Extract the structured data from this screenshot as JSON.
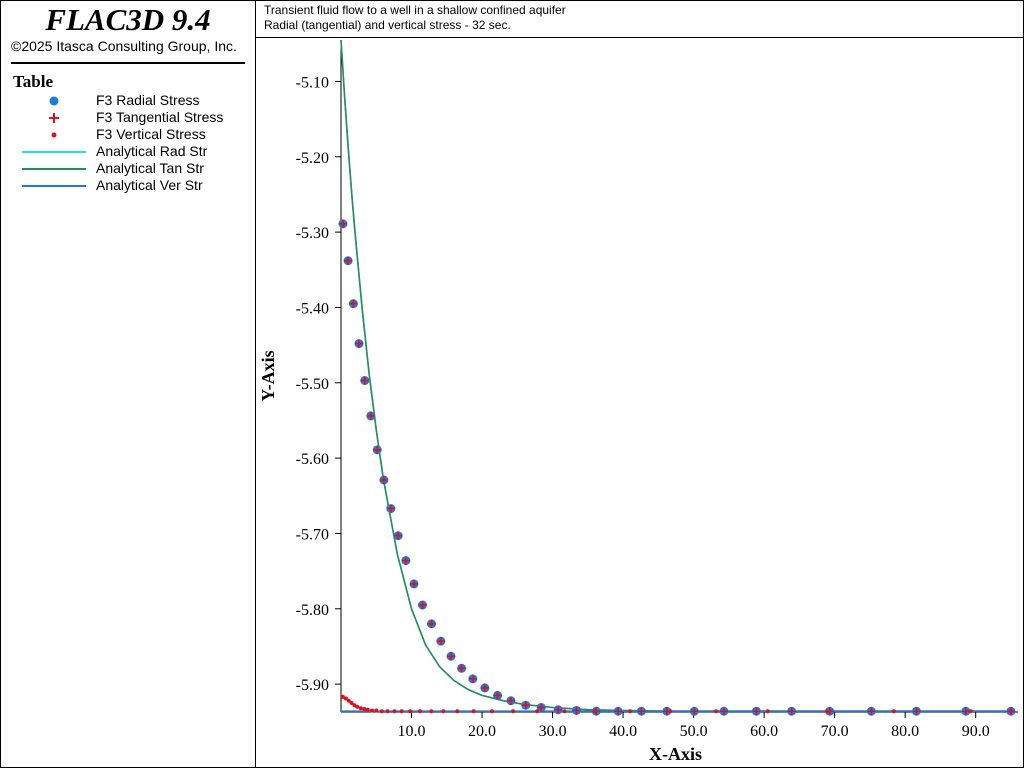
{
  "header": {
    "app_title": "FLAC3D 9.4",
    "copyright": "©2025 Itasca Consulting Group, Inc."
  },
  "legend": {
    "title": "Table",
    "items": [
      {
        "label": "F3 Radial Stress",
        "symbol": "circle",
        "color": "#1a7de0"
      },
      {
        "label": "F3 Tangential Stress",
        "symbol": "plus",
        "color": "#e0101a"
      },
      {
        "label": "F3 Vertical Stress",
        "symbol": "small-circle",
        "color": "#e0101a"
      },
      {
        "label": "Analytical Rad Str",
        "symbol": "line",
        "color": "#22e0e8"
      },
      {
        "label": "Analytical Tan Str",
        "symbol": "line",
        "color": "#2e8a57"
      },
      {
        "label": "Analytical Ver Str",
        "symbol": "line",
        "color": "#1f78e0"
      }
    ]
  },
  "plot_header": {
    "line1": "Transient fluid flow to a well in a shallow confined aquifer",
    "line2": "Radial (tangential) and vertical stress - 32 sec."
  },
  "chart_data": {
    "type": "scatter",
    "xlabel": "X-Axis",
    "ylabel": "Y-Axis",
    "xlim": [
      0.0,
      96.0
    ],
    "ylim": [
      -5.937,
      -5.045
    ],
    "grid": false,
    "x_ticks": [
      "10.0",
      "20.0",
      "30.0",
      "40.0",
      "50.0",
      "60.0",
      "70.0",
      "80.0",
      "90.0"
    ],
    "y_ticks": [
      "-5.10",
      "-5.20",
      "-5.30",
      "-5.40",
      "-5.50",
      "-5.60",
      "-5.70",
      "-5.80",
      "-5.90"
    ],
    "series": [
      {
        "name": "F3 Radial Stress",
        "marker": "circle",
        "color": "#1a7de0",
        "x": [
          0.28,
          1.0,
          1.76,
          2.55,
          3.37,
          4.23,
          5.14,
          6.08,
          7.07,
          8.11,
          9.2,
          10.35,
          11.56,
          12.83,
          14.16,
          15.6,
          17.1,
          18.7,
          20.4,
          22.2,
          24.1,
          26.2,
          28.4,
          30.8,
          33.4,
          36.2,
          39.3,
          42.6,
          46.2,
          50.1,
          54.3,
          58.9,
          63.9,
          69.3,
          75.2,
          81.6,
          88.6,
          95.0
        ],
        "y": [
          -5.289,
          -5.338,
          -5.395,
          -5.448,
          -5.497,
          -5.544,
          -5.589,
          -5.629,
          -5.667,
          -5.703,
          -5.736,
          -5.767,
          -5.795,
          -5.82,
          -5.843,
          -5.863,
          -5.879,
          -5.893,
          -5.905,
          -5.915,
          -5.922,
          -5.928,
          -5.931,
          -5.934,
          -5.935,
          -5.936,
          -5.936,
          -5.936,
          -5.936,
          -5.936,
          -5.936,
          -5.936,
          -5.936,
          -5.936,
          -5.936,
          -5.936,
          -5.936,
          -5.936
        ]
      },
      {
        "name": "F3 Tangential Stress",
        "marker": "plus",
        "color": "#e0101a",
        "x": [
          0.28,
          1.0,
          1.76,
          2.55,
          3.37,
          4.23,
          5.14,
          6.08,
          7.07,
          8.11,
          9.2,
          10.35,
          11.56,
          12.83,
          14.16,
          15.6,
          17.1,
          18.7,
          20.4,
          22.2,
          24.1,
          26.2,
          28.4,
          30.8,
          33.4,
          36.2,
          39.3,
          42.6,
          46.2,
          50.1,
          54.3,
          58.9,
          63.9,
          69.3,
          75.2,
          81.6,
          88.6,
          95.0
        ],
        "y": [
          -5.289,
          -5.338,
          -5.395,
          -5.448,
          -5.497,
          -5.544,
          -5.589,
          -5.629,
          -5.667,
          -5.703,
          -5.736,
          -5.767,
          -5.795,
          -5.82,
          -5.843,
          -5.863,
          -5.879,
          -5.893,
          -5.905,
          -5.915,
          -5.922,
          -5.928,
          -5.931,
          -5.934,
          -5.935,
          -5.936,
          -5.936,
          -5.936,
          -5.936,
          -5.936,
          -5.936,
          -5.936,
          -5.936,
          -5.936,
          -5.936,
          -5.936,
          -5.936,
          -5.936
        ]
      },
      {
        "name": "F3 Vertical Stress",
        "marker": "small-circle",
        "color": "#e0101a",
        "x": [
          0.28,
          0.7,
          1.1,
          1.5,
          1.9,
          2.3,
          2.8,
          3.3,
          3.8,
          4.4,
          5.0,
          5.8,
          6.6,
          7.6,
          8.6,
          9.8,
          11.2,
          12.8,
          14.5,
          16.5,
          18.8,
          21.4,
          24.4,
          27.8,
          31.7,
          36.0,
          41.0,
          46.7,
          53.2,
          60.5,
          68.9,
          78.4,
          89.3,
          95.0
        ],
        "y": [
          -5.917,
          -5.919,
          -5.922,
          -5.925,
          -5.928,
          -5.93,
          -5.932,
          -5.933,
          -5.934,
          -5.935,
          -5.935,
          -5.936,
          -5.936,
          -5.936,
          -5.936,
          -5.936,
          -5.936,
          -5.936,
          -5.936,
          -5.936,
          -5.936,
          -5.936,
          -5.936,
          -5.936,
          -5.936,
          -5.936,
          -5.936,
          -5.936,
          -5.936,
          -5.936,
          -5.936,
          -5.936,
          -5.936,
          -5.936
        ]
      },
      {
        "name": "Analytical Rad Str",
        "marker": "line",
        "color": "#22e0e8",
        "x": [
          0.0,
          0.5,
          1.0,
          1.5,
          2.0,
          3.0,
          4.0,
          5.0,
          6.0,
          8.0,
          10.0,
          12.0,
          14.0,
          16.0,
          18.0,
          20.0,
          23.0,
          26.0,
          30.0,
          35.0,
          40.0,
          46.0,
          52.0,
          60.0,
          70.0,
          80.0,
          95.0
        ],
        "y": [
          -5.045,
          -5.118,
          -5.186,
          -5.247,
          -5.302,
          -5.402,
          -5.489,
          -5.563,
          -5.627,
          -5.728,
          -5.8,
          -5.848,
          -5.877,
          -5.895,
          -5.907,
          -5.915,
          -5.922,
          -5.927,
          -5.931,
          -5.934,
          -5.935,
          -5.936,
          -5.936,
          -5.936,
          -5.936,
          -5.936,
          -5.936
        ]
      },
      {
        "name": "Analytical Tan Str",
        "marker": "line",
        "color": "#2e8a57",
        "x": [
          0.0,
          0.5,
          1.0,
          1.5,
          2.0,
          3.0,
          4.0,
          5.0,
          6.0,
          8.0,
          10.0,
          12.0,
          14.0,
          16.0,
          18.0,
          20.0,
          23.0,
          26.0,
          30.0,
          35.0,
          40.0,
          46.0,
          52.0,
          60.0,
          70.0,
          80.0,
          95.0
        ],
        "y": [
          -5.045,
          -5.118,
          -5.186,
          -5.247,
          -5.302,
          -5.402,
          -5.489,
          -5.563,
          -5.627,
          -5.728,
          -5.8,
          -5.848,
          -5.877,
          -5.895,
          -5.907,
          -5.915,
          -5.922,
          -5.927,
          -5.931,
          -5.934,
          -5.935,
          -5.936,
          -5.936,
          -5.936,
          -5.936,
          -5.936,
          -5.936
        ]
      },
      {
        "name": "Analytical Ver Str",
        "marker": "line",
        "color": "#1f78e0",
        "x": [
          0.0,
          95.0
        ],
        "y": [
          -5.936,
          -5.936
        ]
      }
    ]
  }
}
